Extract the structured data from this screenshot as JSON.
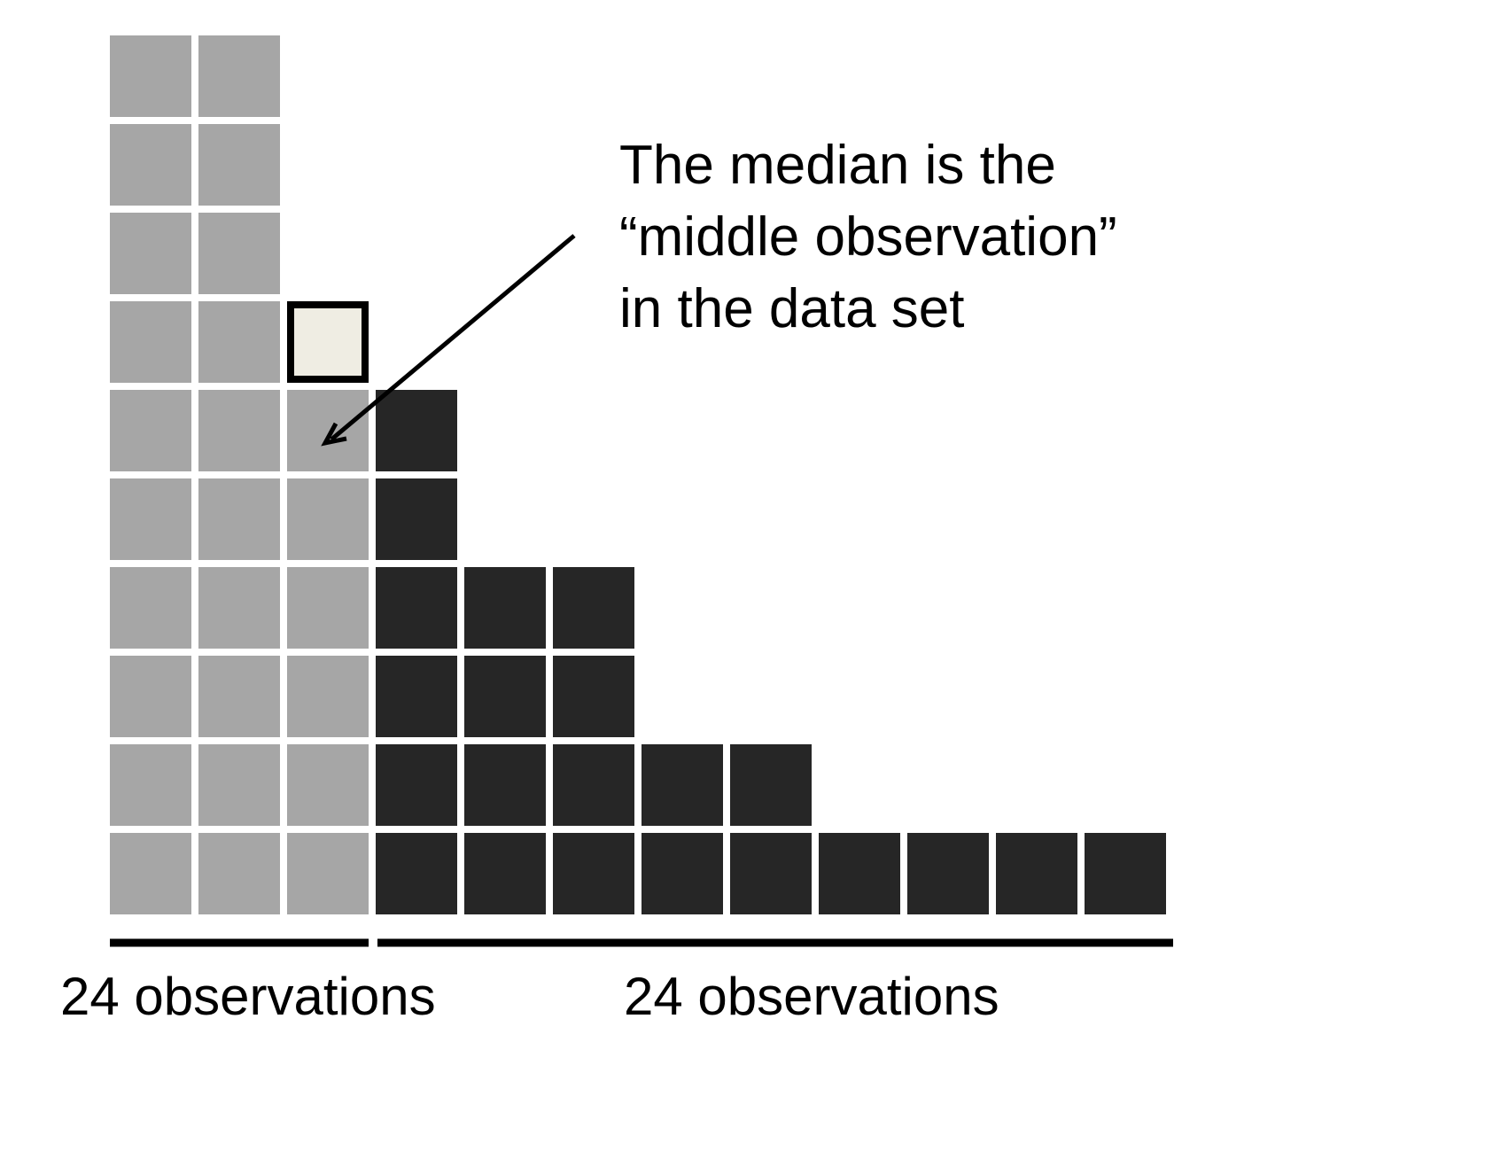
{
  "diagram": {
    "annotation_lines": [
      "The median is the",
      "“middle observation”",
      "in the data set"
    ],
    "left_group_label": "24 observations",
    "right_group_label": "24 observations",
    "column_counts": [
      10,
      10,
      6,
      6,
      4,
      4,
      2,
      2,
      1,
      1,
      1,
      1
    ],
    "median_column_index": 2,
    "colors": {
      "lower_half": "#a6a6a6",
      "upper_half": "#262626",
      "median_fill": "#efede3",
      "median_border": "#000000",
      "bracket": "#000000"
    }
  }
}
